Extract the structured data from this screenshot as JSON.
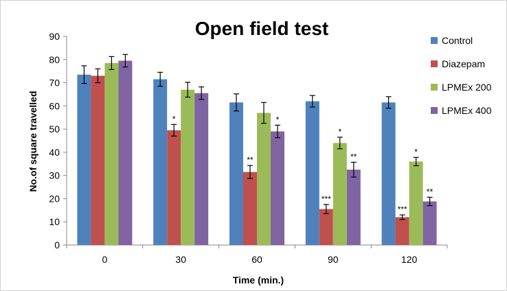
{
  "chart_data": {
    "type": "bar",
    "title": "Open field test",
    "xlabel": "Time (min.)",
    "ylabel": "No.of square  travelled",
    "categories": [
      "0",
      "30",
      "60",
      "90",
      "120"
    ],
    "ylim": [
      0,
      90
    ],
    "yticks": [
      0,
      10,
      20,
      30,
      40,
      50,
      60,
      70,
      80,
      90
    ],
    "grid": false,
    "legend_position": "right",
    "series": [
      {
        "name": "Control",
        "color": "#4f81bd",
        "values": [
          73.5,
          71.5,
          61.5,
          62,
          61.5
        ],
        "errors": [
          3.8,
          3,
          3.7,
          2.5,
          2.5
        ],
        "significance": [
          "",
          "",
          "",
          "",
          ""
        ]
      },
      {
        "name": "Diazepam",
        "color": "#c0504d",
        "values": [
          73,
          49.5,
          31.5,
          15.5,
          12
        ],
        "errors": [
          3,
          2.5,
          2.8,
          2,
          1
        ],
        "significance": [
          "",
          "*",
          "**",
          "***",
          "***"
        ]
      },
      {
        "name": "LPMEx 200",
        "color": "#9bbb59",
        "values": [
          78.5,
          67,
          57,
          44,
          36
        ],
        "errors": [
          2.8,
          3.2,
          4.5,
          2.5,
          1.8
        ],
        "significance": [
          "",
          "",
          "",
          "*",
          "*"
        ]
      },
      {
        "name": "LPMEx 400",
        "color": "#8064a2",
        "values": [
          79.5,
          65.5,
          49,
          32.5,
          18.8
        ],
        "errors": [
          2.7,
          2.7,
          2.7,
          3.2,
          1.8
        ],
        "significance": [
          "",
          "",
          "*",
          "**",
          "**"
        ]
      }
    ]
  }
}
